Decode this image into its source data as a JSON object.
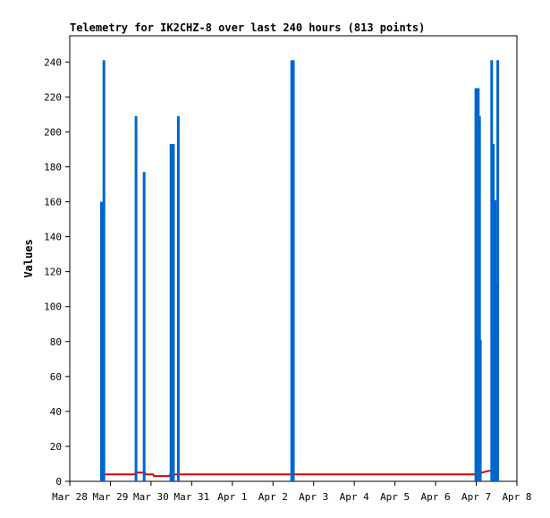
{
  "chart_data": {
    "type": "bar",
    "title": "Telemetry for IK2CHZ-8 over last 240 hours (813 points)",
    "ylabel": "Values",
    "xlabel": "",
    "ylim": [
      0,
      255
    ],
    "xlim_days": [
      0,
      11
    ],
    "yticks": [
      0,
      20,
      40,
      60,
      80,
      100,
      120,
      140,
      160,
      180,
      200,
      220,
      240
    ],
    "xticks": [
      {
        "label": "Mar 28",
        "day": 0
      },
      {
        "label": "Mar 29",
        "day": 1
      },
      {
        "label": "Mar 30",
        "day": 2
      },
      {
        "label": "Mar 31",
        "day": 3
      },
      {
        "label": "Apr 1",
        "day": 4
      },
      {
        "label": "Apr 2",
        "day": 5
      },
      {
        "label": "Apr 3",
        "day": 6
      },
      {
        "label": "Apr 4",
        "day": 7
      },
      {
        "label": "Apr 5",
        "day": 8
      },
      {
        "label": "Apr 6",
        "day": 9
      },
      {
        "label": "Apr 7",
        "day": 10
      },
      {
        "label": "Apr 8",
        "day": 11
      }
    ],
    "grid": false,
    "legend": "none",
    "series": [
      {
        "color": "#0066cc",
        "kind": "bars",
        "points": [
          {
            "day": 0.78,
            "value": 160
          },
          {
            "day": 0.84,
            "value": 241
          },
          {
            "day": 1.63,
            "value": 209
          },
          {
            "day": 1.83,
            "value": 177
          },
          {
            "day": 2.49,
            "value": 193
          },
          {
            "day": 2.52,
            "value": 193
          },
          {
            "day": 2.55,
            "value": 193
          },
          {
            "day": 2.67,
            "value": 209
          },
          {
            "day": 5.46,
            "value": 241
          },
          {
            "day": 5.5,
            "value": 241
          },
          {
            "day": 9.99,
            "value": 225
          },
          {
            "day": 10.02,
            "value": 225
          },
          {
            "day": 10.05,
            "value": 225
          },
          {
            "day": 10.08,
            "value": 209
          },
          {
            "day": 10.1,
            "value": 81
          },
          {
            "day": 10.38,
            "value": 241
          },
          {
            "day": 10.42,
            "value": 193
          },
          {
            "day": 10.46,
            "value": 161
          },
          {
            "day": 10.5,
            "value": 113
          },
          {
            "day": 10.53,
            "value": 241
          }
        ]
      },
      {
        "color": "#dd0000",
        "kind": "line",
        "points": [
          {
            "day": 0.78,
            "value": 4
          },
          {
            "day": 1.6,
            "value": 4
          },
          {
            "day": 1.62,
            "value": 5
          },
          {
            "day": 1.85,
            "value": 5
          },
          {
            "day": 1.87,
            "value": 4
          },
          {
            "day": 2.05,
            "value": 4
          },
          {
            "day": 2.07,
            "value": 3
          },
          {
            "day": 2.45,
            "value": 3
          },
          {
            "day": 2.47,
            "value": 4
          },
          {
            "day": 10.0,
            "value": 4
          },
          {
            "day": 10.15,
            "value": 5
          },
          {
            "day": 10.3,
            "value": 6
          },
          {
            "day": 10.55,
            "value": 6
          }
        ]
      }
    ]
  }
}
